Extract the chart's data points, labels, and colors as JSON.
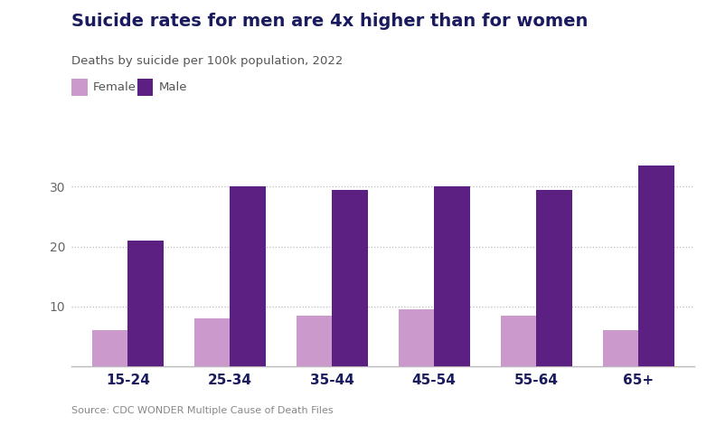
{
  "title": "Suicide rates for men are 4x higher than for women",
  "subtitle": "Deaths by suicide per 100k population, 2022",
  "source": "Source: CDC WONDER Multiple Cause of Death Files",
  "categories": [
    "15-24",
    "25-34",
    "35-44",
    "45-54",
    "55-64",
    "65+"
  ],
  "female_values": [
    6.0,
    8.0,
    8.5,
    9.5,
    8.5,
    6.0
  ],
  "male_values": [
    21.0,
    30.0,
    29.5,
    30.0,
    29.5,
    33.5
  ],
  "female_color": "#cc99cc",
  "male_color": "#5b2082",
  "title_color": "#1a1a5e",
  "subtitle_color": "#555555",
  "source_color": "#888888",
  "background_color": "#ffffff",
  "ylim": [
    0,
    37
  ],
  "yticks": [
    10,
    20,
    30
  ],
  "bar_width": 0.35,
  "figsize": [
    7.92,
    4.71
  ],
  "dpi": 100
}
